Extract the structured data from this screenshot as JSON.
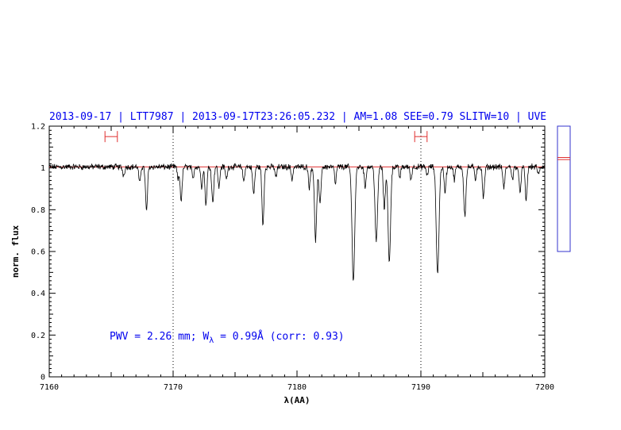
{
  "header": {
    "text": "2013-09-17 | LTT7987 | 2013-09-17T23:26:05.232 | AM=1.08 SEE=0.79 SLITW=10 | UVE"
  },
  "annotation": {
    "prefix": "PWV = 2.26 mm; W",
    "subscript": "λ",
    "suffix": " = 0.99Å (corr: 0.93)"
  },
  "colors": {
    "spectrum": "#000000",
    "continuum": "#e03030",
    "text": "#0000ee",
    "side_box": "#3333cc",
    "markers": "#e03030"
  },
  "chart_data": {
    "type": "line",
    "xlabel": "λ(AA)",
    "ylabel": "norm. flux",
    "xlim": [
      7160,
      7200
    ],
    "ylim": [
      0,
      1.2
    ],
    "xticks": [
      7160,
      7170,
      7180,
      7190,
      7200
    ],
    "xtick_labels": [
      "7160",
      "7170",
      "7180",
      "7190",
      "7200"
    ],
    "yticks": [
      0,
      0.2,
      0.4,
      0.6,
      0.8,
      1,
      1.2
    ],
    "ytick_labels": [
      "0",
      "0.2",
      "0.4",
      "0.6",
      "0.8",
      "1",
      "1.2"
    ],
    "reference_lines_x": [
      7170,
      7190
    ],
    "continuum_level": 1.005,
    "continuum_windows": [
      {
        "center": 7165.0,
        "halfwidth": 0.5,
        "y": 1.15
      },
      {
        "center": 7190.0,
        "halfwidth": 0.5,
        "y": 1.15
      }
    ],
    "series": [
      {
        "continuum": 1.005,
        "absorption_lines": [
          {
            "x": 7166.0,
            "depth": 0.04,
            "width": 0.08
          },
          {
            "x": 7167.3,
            "depth": 0.08,
            "width": 0.07
          },
          {
            "x": 7167.85,
            "depth": 0.21,
            "width": 0.08
          },
          {
            "x": 7170.4,
            "depth": 0.06,
            "width": 0.07
          },
          {
            "x": 7170.65,
            "depth": 0.16,
            "width": 0.08
          },
          {
            "x": 7171.6,
            "depth": 0.06,
            "width": 0.07
          },
          {
            "x": 7172.3,
            "depth": 0.1,
            "width": 0.07
          },
          {
            "x": 7172.65,
            "depth": 0.18,
            "width": 0.08
          },
          {
            "x": 7173.2,
            "depth": 0.17,
            "width": 0.08
          },
          {
            "x": 7173.7,
            "depth": 0.1,
            "width": 0.07
          },
          {
            "x": 7174.3,
            "depth": 0.06,
            "width": 0.07
          },
          {
            "x": 7175.7,
            "depth": 0.07,
            "width": 0.07
          },
          {
            "x": 7176.5,
            "depth": 0.13,
            "width": 0.08
          },
          {
            "x": 7177.25,
            "depth": 0.28,
            "width": 0.08
          },
          {
            "x": 7178.3,
            "depth": 0.05,
            "width": 0.07
          },
          {
            "x": 7179.6,
            "depth": 0.06,
            "width": 0.07
          },
          {
            "x": 7181.0,
            "depth": 0.1,
            "width": 0.07
          },
          {
            "x": 7181.5,
            "depth": 0.35,
            "width": 0.09
          },
          {
            "x": 7181.85,
            "depth": 0.18,
            "width": 0.08
          },
          {
            "x": 7183.1,
            "depth": 0.08,
            "width": 0.07
          },
          {
            "x": 7184.55,
            "depth": 0.54,
            "width": 0.11
          },
          {
            "x": 7185.5,
            "depth": 0.1,
            "width": 0.07
          },
          {
            "x": 7186.4,
            "depth": 0.36,
            "width": 0.1
          },
          {
            "x": 7187.05,
            "depth": 0.2,
            "width": 0.08
          },
          {
            "x": 7187.45,
            "depth": 0.46,
            "width": 0.1
          },
          {
            "x": 7188.3,
            "depth": 0.05,
            "width": 0.07
          },
          {
            "x": 7189.2,
            "depth": 0.06,
            "width": 0.07
          },
          {
            "x": 7190.5,
            "depth": 0.04,
            "width": 0.07
          },
          {
            "x": 7191.35,
            "depth": 0.51,
            "width": 0.11
          },
          {
            "x": 7191.95,
            "depth": 0.12,
            "width": 0.08
          },
          {
            "x": 7192.7,
            "depth": 0.06,
            "width": 0.07
          },
          {
            "x": 7193.55,
            "depth": 0.23,
            "width": 0.09
          },
          {
            "x": 7194.4,
            "depth": 0.06,
            "width": 0.07
          },
          {
            "x": 7195.05,
            "depth": 0.15,
            "width": 0.08
          },
          {
            "x": 7196.7,
            "depth": 0.1,
            "width": 0.08
          },
          {
            "x": 7197.4,
            "depth": 0.06,
            "width": 0.07
          },
          {
            "x": 7198.0,
            "depth": 0.12,
            "width": 0.08
          },
          {
            "x": 7198.5,
            "depth": 0.16,
            "width": 0.08
          },
          {
            "x": 7199.5,
            "depth": 0.04,
            "width": 0.07
          }
        ]
      }
    ],
    "side_panel": {
      "ylim": [
        0,
        1.2
      ],
      "box_range": [
        0.6,
        1.2
      ],
      "marker_values": [
        1.04,
        1.05
      ]
    }
  }
}
